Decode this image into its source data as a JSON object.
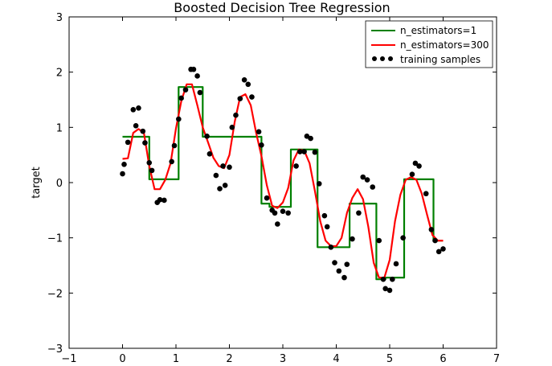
{
  "chart_data": {
    "type": "line",
    "title": "Boosted Decision Tree Regression",
    "xlabel": "",
    "ylabel": "target",
    "xlim": [
      -1,
      7
    ],
    "ylim": [
      -3,
      3
    ],
    "xticks": [
      -1,
      0,
      1,
      2,
      3,
      4,
      5,
      6,
      7
    ],
    "yticks": [
      -3,
      -2,
      -1,
      0,
      1,
      2,
      3
    ],
    "xtick_labels": [
      "−1",
      "0",
      "1",
      "2",
      "3",
      "4",
      "5",
      "6",
      "7"
    ],
    "ytick_labels": [
      "−3",
      "−2",
      "−1",
      "0",
      "1",
      "2",
      "3"
    ],
    "grid": false,
    "legend_position": "top-right",
    "legend": [
      {
        "label": "n_estimators=1",
        "kind": "line",
        "color": "#008000"
      },
      {
        "label": "n_estimators=300",
        "kind": "line",
        "color": "#ff0000"
      },
      {
        "label": "training samples",
        "kind": "dots",
        "color": "#000000"
      }
    ],
    "series": [
      {
        "name": "n_estimators=1",
        "kind": "step",
        "color": "#008000",
        "x": [
          0,
          0.5,
          0.5,
          1.05,
          1.05,
          1.5,
          1.5,
          2.6,
          2.6,
          2.75,
          2.75,
          3.15,
          3.15,
          3.65,
          3.65,
          3.85,
          3.85,
          4.2,
          4.2,
          4.25,
          4.25,
          4.75,
          4.75,
          4.92,
          4.92,
          5.27,
          5.27,
          5.82,
          5.82,
          6.0
        ],
        "y": [
          0.83,
          0.83,
          0.06,
          0.06,
          1.73,
          1.73,
          0.83,
          0.83,
          -0.38,
          -0.38,
          -0.44,
          -0.44,
          0.6,
          0.6,
          -1.17,
          -1.17,
          -1.17,
          -1.17,
          -1.17,
          -1.17,
          -0.38,
          -0.38,
          -1.75,
          -1.75,
          -1.72,
          -1.72,
          0.06,
          0.06,
          -1.05,
          -1.05
        ]
      },
      {
        "name": "n_estimators=300",
        "kind": "line",
        "color": "#ff0000",
        "x": [
          0.0,
          0.1,
          0.2,
          0.3,
          0.4,
          0.5,
          0.6,
          0.7,
          0.8,
          0.9,
          1.0,
          1.1,
          1.2,
          1.3,
          1.4,
          1.5,
          1.6,
          1.7,
          1.8,
          1.9,
          2.0,
          2.1,
          2.2,
          2.3,
          2.4,
          2.5,
          2.6,
          2.7,
          2.8,
          2.9,
          3.0,
          3.1,
          3.2,
          3.3,
          3.4,
          3.5,
          3.6,
          3.7,
          3.8,
          3.9,
          4.0,
          4.1,
          4.2,
          4.3,
          4.4,
          4.5,
          4.6,
          4.7,
          4.8,
          4.9,
          5.0,
          5.1,
          5.2,
          5.3,
          5.4,
          5.5,
          5.6,
          5.7,
          5.8,
          5.9,
          6.0
        ],
        "y": [
          0.43,
          0.44,
          0.9,
          0.97,
          0.9,
          0.3,
          -0.12,
          -0.12,
          0.05,
          0.35,
          0.98,
          1.48,
          1.78,
          1.78,
          1.4,
          1.0,
          0.73,
          0.45,
          0.3,
          0.26,
          0.5,
          1.1,
          1.55,
          1.6,
          1.4,
          0.9,
          0.48,
          -0.05,
          -0.42,
          -0.46,
          -0.36,
          -0.1,
          0.4,
          0.6,
          0.58,
          0.35,
          -0.15,
          -0.7,
          -1.05,
          -1.15,
          -1.15,
          -1.0,
          -0.55,
          -0.28,
          -0.12,
          -0.3,
          -0.8,
          -1.45,
          -1.72,
          -1.72,
          -1.4,
          -0.7,
          -0.22,
          0.05,
          0.1,
          0.05,
          -0.2,
          -0.58,
          -0.95,
          -1.05,
          -1.05
        ]
      },
      {
        "name": "training samples",
        "kind": "scatter",
        "color": "#000000",
        "x": [
          0.0,
          0.03,
          0.1,
          0.2,
          0.25,
          0.3,
          0.38,
          0.42,
          0.5,
          0.55,
          0.65,
          0.7,
          0.78,
          0.92,
          0.97,
          1.05,
          1.1,
          1.18,
          1.28,
          1.33,
          1.4,
          1.45,
          1.58,
          1.63,
          1.75,
          1.82,
          1.88,
          1.92,
          2.0,
          2.05,
          2.12,
          2.2,
          2.28,
          2.35,
          2.42,
          2.55,
          2.6,
          2.7,
          2.8,
          2.85,
          2.9,
          3.0,
          3.1,
          3.25,
          3.32,
          3.4,
          3.45,
          3.52,
          3.6,
          3.68,
          3.78,
          3.83,
          3.9,
          3.97,
          4.05,
          4.15,
          4.2,
          4.3,
          4.42,
          4.5,
          4.58,
          4.68,
          4.8,
          4.88,
          4.92,
          5.0,
          5.05,
          5.12,
          5.25,
          5.42,
          5.48,
          5.55,
          5.68,
          5.78,
          5.85,
          5.92,
          6.0
        ],
        "y": [
          0.16,
          0.33,
          0.73,
          1.32,
          1.03,
          1.35,
          0.93,
          0.72,
          0.36,
          0.22,
          -0.36,
          -0.31,
          -0.32,
          0.38,
          0.67,
          1.15,
          1.53,
          1.68,
          2.05,
          2.05,
          1.93,
          1.63,
          0.84,
          0.52,
          0.13,
          -0.11,
          0.3,
          -0.05,
          0.28,
          1.0,
          1.22,
          1.52,
          1.86,
          1.78,
          1.55,
          0.92,
          0.68,
          -0.28,
          -0.5,
          -0.55,
          -0.75,
          -0.52,
          -0.55,
          0.3,
          0.56,
          0.56,
          0.84,
          0.8,
          0.55,
          -0.02,
          -0.6,
          -0.8,
          -1.17,
          -1.45,
          -1.6,
          -1.72,
          -1.48,
          -1.02,
          -0.55,
          0.1,
          0.05,
          -0.08,
          -1.05,
          -1.75,
          -1.92,
          -1.95,
          -1.75,
          -1.47,
          -1.0,
          0.15,
          0.35,
          0.3,
          -0.2,
          -0.85,
          -1.05,
          -1.25,
          -1.2
        ]
      }
    ]
  }
}
